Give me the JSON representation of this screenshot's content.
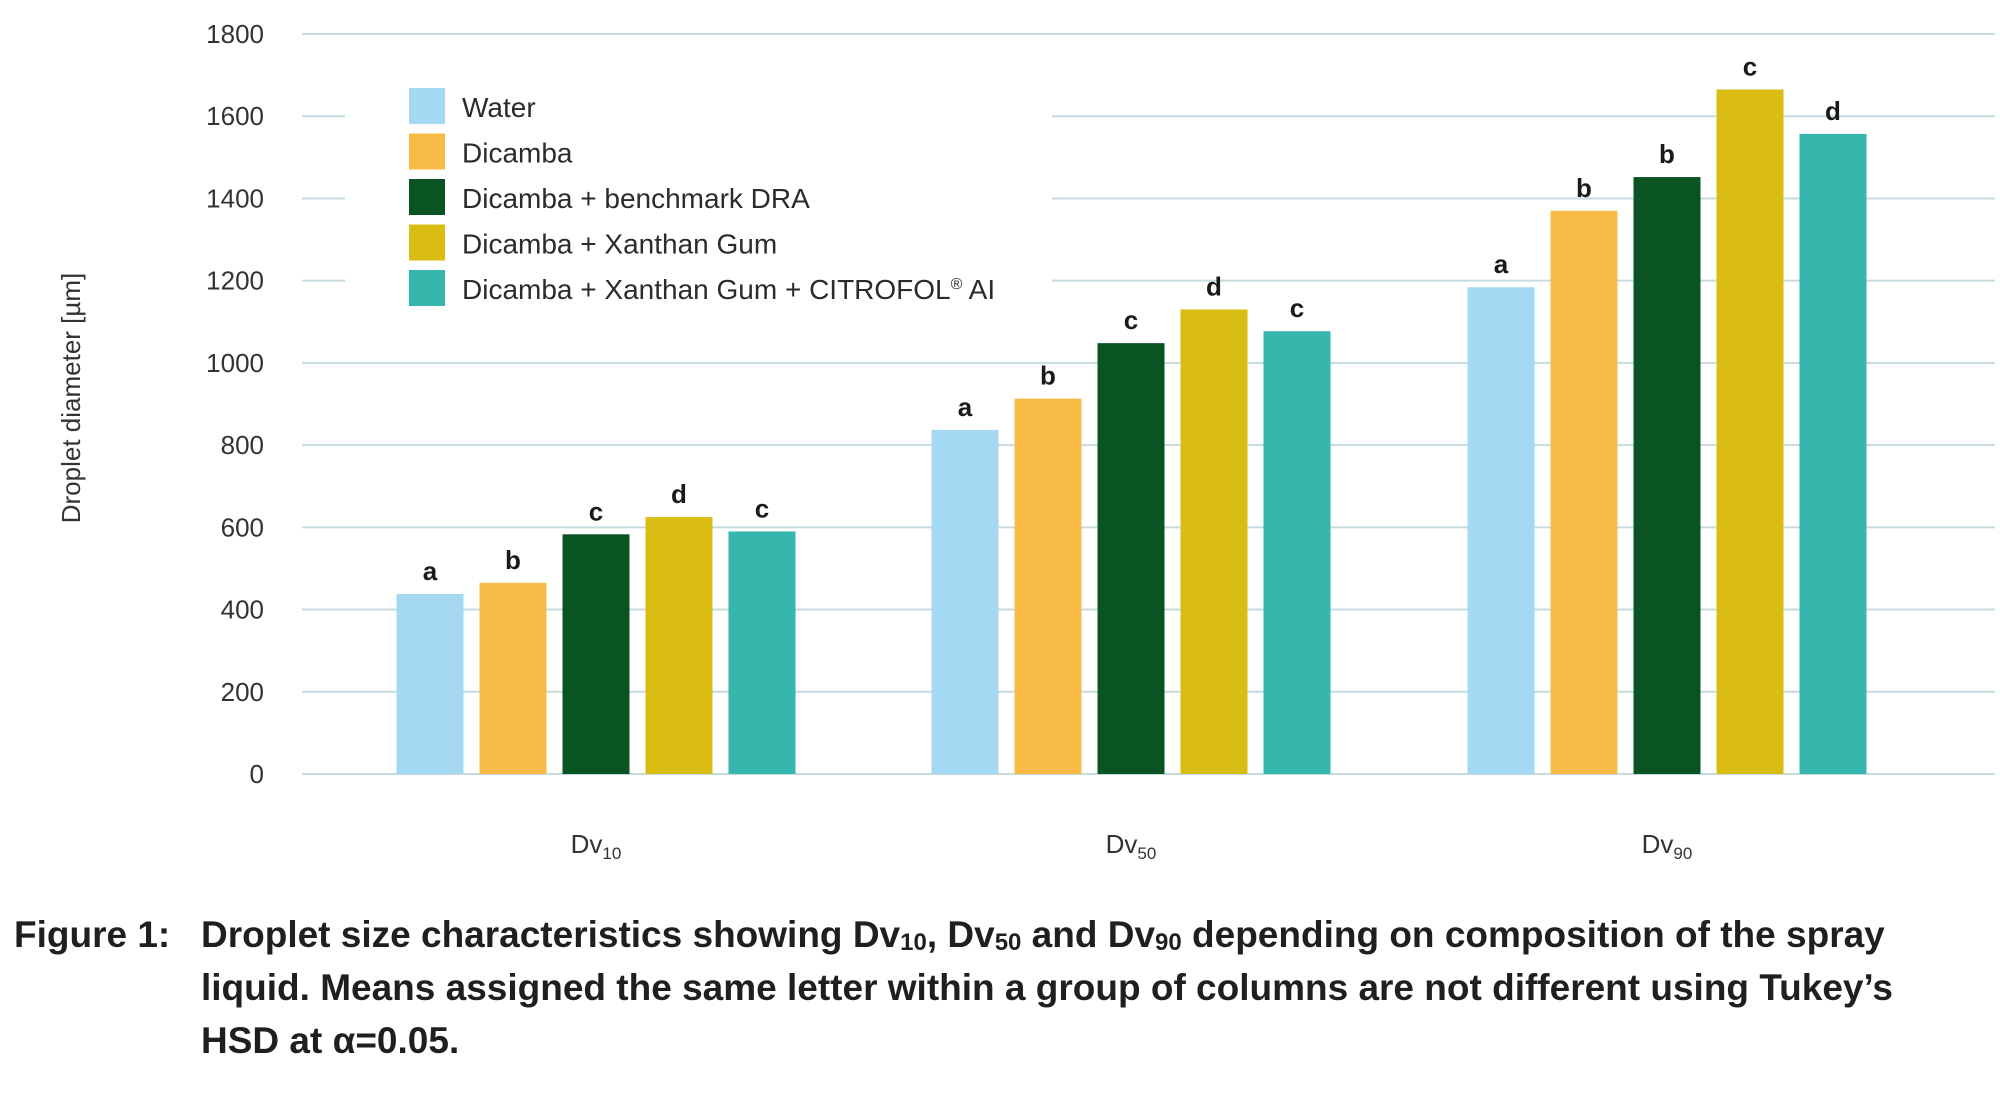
{
  "chart_data": {
    "type": "bar",
    "categories": [
      "Dv10",
      "Dv50",
      "Dv90"
    ],
    "category_display": [
      {
        "main": "Dv",
        "sub": "10"
      },
      {
        "main": "Dv",
        "sub": "50"
      },
      {
        "main": "Dv",
        "sub": "90"
      }
    ],
    "ylabel": "Droplet diameter [µm]",
    "xlabel": "",
    "ylim": [
      0,
      1800
    ],
    "yticks": [
      "0",
      "200",
      "400",
      "600",
      "800",
      "1000",
      "1200",
      "1400",
      "1600",
      "1800"
    ],
    "grid": true,
    "legend_position": "top-left",
    "series": [
      {
        "name": "Water",
        "color": "#a5d8f3",
        "values": [
          438,
          837,
          1184
        ],
        "letters": [
          "a",
          "a",
          "a"
        ]
      },
      {
        "name": "Dicamba",
        "color": "#f8bb45",
        "values": [
          465,
          913,
          1370
        ],
        "letters": [
          "b",
          "b",
          "b"
        ]
      },
      {
        "name": "Dicamba + benchmark DRA",
        "color": "#0a5323",
        "values": [
          583,
          1048,
          1452
        ],
        "letters": [
          "c",
          "c",
          "b"
        ]
      },
      {
        "name": "Dicamba + Xanthan Gum",
        "color": "#d9bd12",
        "values": [
          625,
          1130,
          1665
        ],
        "letters": [
          "d",
          "d",
          "c"
        ]
      },
      {
        "name": "Dicamba + Xanthan Gum + CITROFOL® AI",
        "color": "#36b6ac",
        "values": [
          590,
          1077,
          1557
        ],
        "letters": [
          "c",
          "c",
          "d"
        ]
      }
    ]
  },
  "caption": {
    "label": "Figure 1:",
    "parts": [
      {
        "t": "Droplet size characteristics showing Dv"
      },
      {
        "s": "10"
      },
      {
        "t": ", Dv"
      },
      {
        "s": "50"
      },
      {
        "t": " and Dv"
      },
      {
        "s": "90"
      },
      {
        "t": " depending on composition of the spray liquid. Means assigned the same letter within a group of columns are not different using Tukey’s HSD at α=0.05."
      }
    ]
  }
}
